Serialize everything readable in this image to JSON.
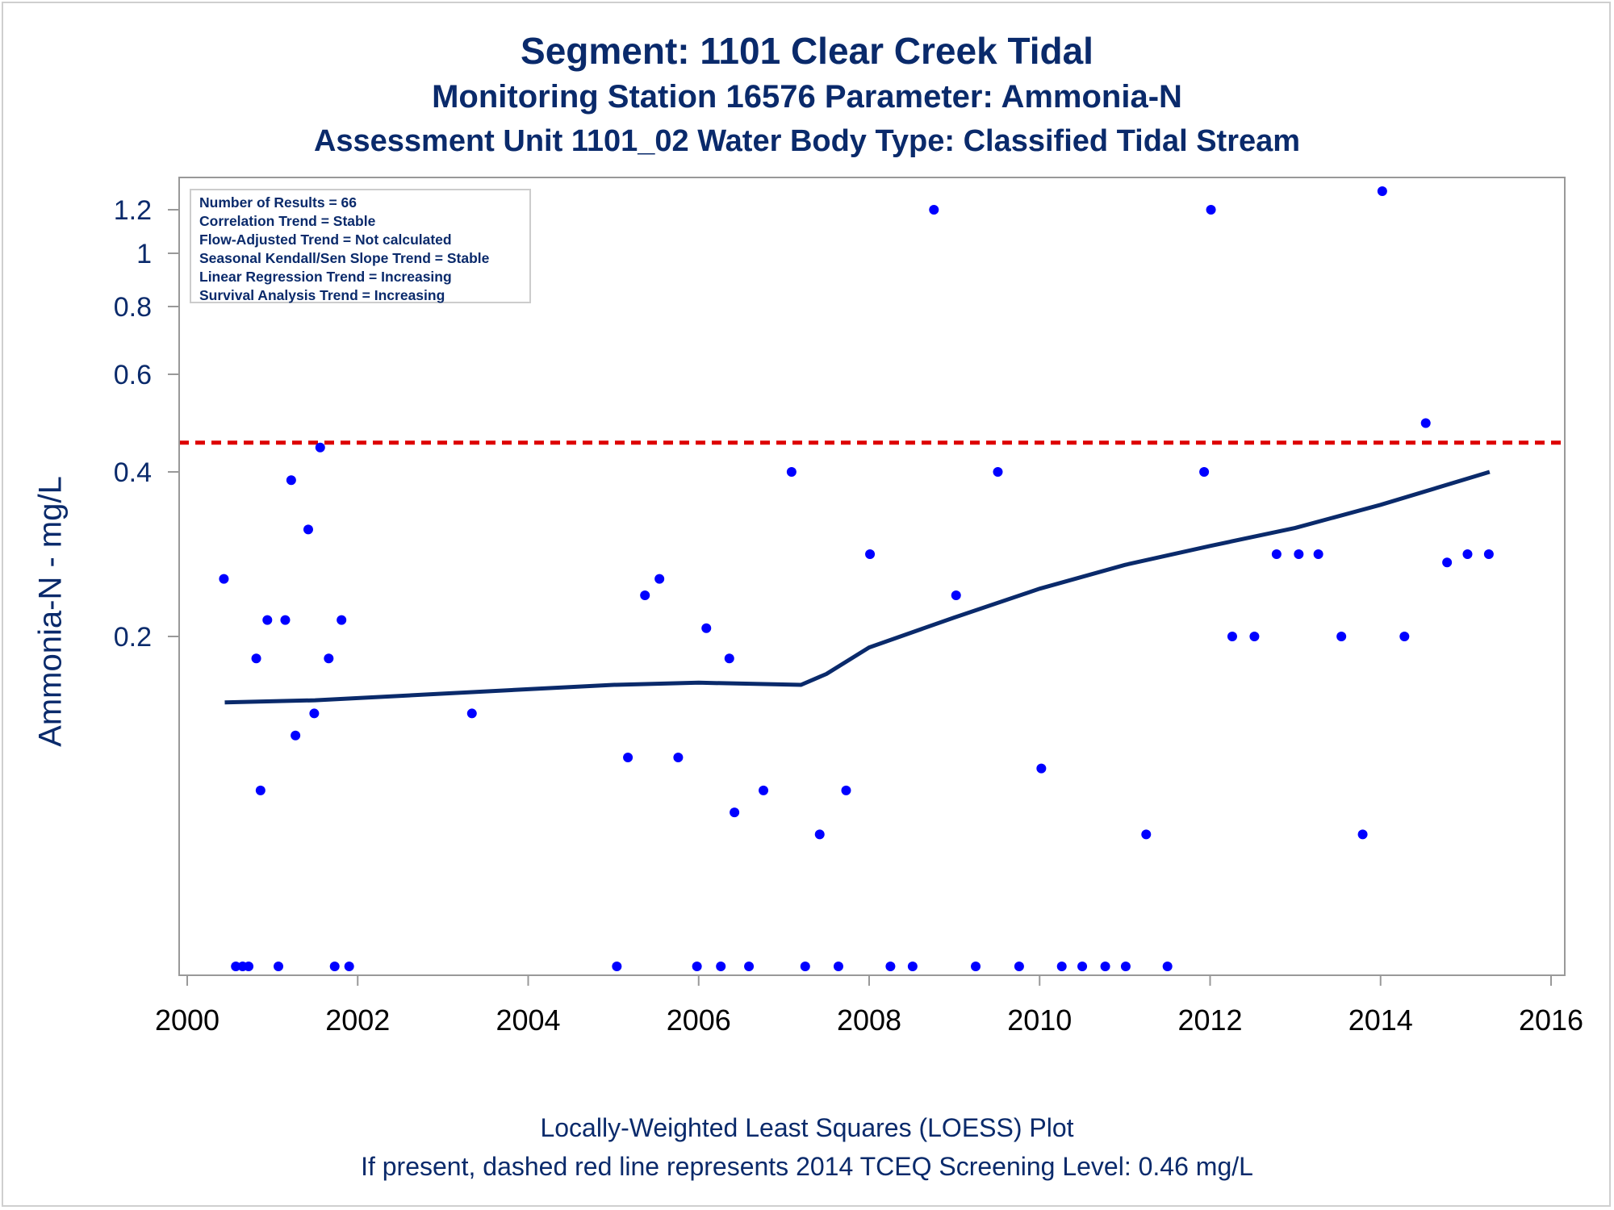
{
  "title_lines": [
    "Segment: 1101  Clear Creek Tidal",
    "Monitoring Station 16576 Parameter: Ammonia-N",
    "Assessment Unit 1101_02   Water Body Type: Classified Tidal Stream"
  ],
  "footer_lines": [
    "Locally-Weighted Least Squares (LOESS) Plot",
    "If present, dashed red line represents 2014 TCEQ Screening Level: 0.46 mg/L"
  ],
  "stats_lines": [
    "Number of Results = 66",
    "Correlation Trend = Stable",
    "Flow-Adjusted Trend = Not calculated",
    "Seasonal Kendall/Sen Slope Trend = Stable",
    "Linear Regression Trend = Increasing",
    "Survival Analysis Trend = Increasing"
  ],
  "colors": {
    "text": "#0a2a6b",
    "points": "#0000ff",
    "loess": "#0a2a6b",
    "screening": "#dd0000",
    "axis": "#999999"
  },
  "chart_data": {
    "type": "scatter",
    "ylabel": "Ammonia-N - mg/L",
    "xlabel": "",
    "xlim": [
      2000,
      2016
    ],
    "x_ticks": [
      2000,
      2002,
      2004,
      2006,
      2008,
      2010,
      2012,
      2014,
      2016
    ],
    "y_scale": "nonlinear (compressed at high values)",
    "y_ticks": [
      {
        "value": 0.2,
        "label": "0.2"
      },
      {
        "value": 0.4,
        "label": "0.4"
      },
      {
        "value": 0.6,
        "label": "0.6"
      },
      {
        "value": 0.8,
        "label": "0.8"
      },
      {
        "value": 1.0,
        "label": "1"
      },
      {
        "value": 1.2,
        "label": "1.2"
      }
    ],
    "screening_level": 0.46,
    "points": [
      {
        "x": 2000.43,
        "y": 0.27
      },
      {
        "x": 2000.57,
        "y": 0.05
      },
      {
        "x": 2000.65,
        "y": 0.05
      },
      {
        "x": 2000.72,
        "y": 0.05
      },
      {
        "x": 2000.81,
        "y": 0.19
      },
      {
        "x": 2000.86,
        "y": 0.13
      },
      {
        "x": 2000.94,
        "y": 0.22
      },
      {
        "x": 2001.07,
        "y": 0.05
      },
      {
        "x": 2001.15,
        "y": 0.22
      },
      {
        "x": 2001.22,
        "y": 0.39
      },
      {
        "x": 2001.27,
        "y": 0.155
      },
      {
        "x": 2001.42,
        "y": 0.33
      },
      {
        "x": 2001.49,
        "y": 0.165
      },
      {
        "x": 2001.56,
        "y": 0.45
      },
      {
        "x": 2001.66,
        "y": 0.19
      },
      {
        "x": 2001.73,
        "y": 0.05
      },
      {
        "x": 2001.81,
        "y": 0.22
      },
      {
        "x": 2001.9,
        "y": 0.05
      },
      {
        "x": 2003.34,
        "y": 0.165
      },
      {
        "x": 2005.04,
        "y": 0.05
      },
      {
        "x": 2005.17,
        "y": 0.145
      },
      {
        "x": 2005.37,
        "y": 0.25
      },
      {
        "x": 2005.54,
        "y": 0.27
      },
      {
        "x": 2005.76,
        "y": 0.145
      },
      {
        "x": 2005.98,
        "y": 0.05
      },
      {
        "x": 2006.09,
        "y": 0.21
      },
      {
        "x": 2006.26,
        "y": 0.05
      },
      {
        "x": 2006.36,
        "y": 0.19
      },
      {
        "x": 2006.42,
        "y": 0.12
      },
      {
        "x": 2006.59,
        "y": 0.05
      },
      {
        "x": 2006.76,
        "y": 0.13
      },
      {
        "x": 2007.09,
        "y": 0.4
      },
      {
        "x": 2007.25,
        "y": 0.05
      },
      {
        "x": 2007.42,
        "y": 0.11
      },
      {
        "x": 2007.64,
        "y": 0.05
      },
      {
        "x": 2007.73,
        "y": 0.13
      },
      {
        "x": 2008.01,
        "y": 0.3
      },
      {
        "x": 2008.25,
        "y": 0.05
      },
      {
        "x": 2008.51,
        "y": 0.05
      },
      {
        "x": 2008.76,
        "y": 1.2
      },
      {
        "x": 2009.25,
        "y": 0.05
      },
      {
        "x": 2009.02,
        "y": 0.25
      },
      {
        "x": 2009.51,
        "y": 0.4
      },
      {
        "x": 2009.76,
        "y": 0.05
      },
      {
        "x": 2010.02,
        "y": 0.14
      },
      {
        "x": 2010.26,
        "y": 0.05
      },
      {
        "x": 2010.5,
        "y": 0.05
      },
      {
        "x": 2010.77,
        "y": 0.05
      },
      {
        "x": 2011.01,
        "y": 0.05
      },
      {
        "x": 2011.25,
        "y": 0.11
      },
      {
        "x": 2011.5,
        "y": 0.05
      },
      {
        "x": 2011.93,
        "y": 0.4
      },
      {
        "x": 2012.01,
        "y": 1.2
      },
      {
        "x": 2012.26,
        "y": 0.2
      },
      {
        "x": 2012.52,
        "y": 0.2
      },
      {
        "x": 2012.78,
        "y": 0.3
      },
      {
        "x": 2013.04,
        "y": 0.3
      },
      {
        "x": 2013.27,
        "y": 0.3
      },
      {
        "x": 2013.54,
        "y": 0.2
      },
      {
        "x": 2013.79,
        "y": 0.11
      },
      {
        "x": 2014.02,
        "y": 1.3
      },
      {
        "x": 2014.28,
        "y": 0.2
      },
      {
        "x": 2014.53,
        "y": 0.5
      },
      {
        "x": 2014.78,
        "y": 0.29
      },
      {
        "x": 2015.02,
        "y": 0.3
      },
      {
        "x": 2015.27,
        "y": 0.3
      }
    ],
    "loess": [
      {
        "x": 2000.44,
        "y": 0.17
      },
      {
        "x": 2001.5,
        "y": 0.171
      },
      {
        "x": 2003.0,
        "y": 0.174
      },
      {
        "x": 2004.0,
        "y": 0.176
      },
      {
        "x": 2005.0,
        "y": 0.178
      },
      {
        "x": 2006.0,
        "y": 0.179
      },
      {
        "x": 2007.2,
        "y": 0.178
      },
      {
        "x": 2007.5,
        "y": 0.183
      },
      {
        "x": 2008.0,
        "y": 0.195
      },
      {
        "x": 2009.0,
        "y": 0.223
      },
      {
        "x": 2010.0,
        "y": 0.258
      },
      {
        "x": 2011.0,
        "y": 0.287
      },
      {
        "x": 2012.0,
        "y": 0.31
      },
      {
        "x": 2013.0,
        "y": 0.332
      },
      {
        "x": 2014.0,
        "y": 0.36
      },
      {
        "x": 2015.28,
        "y": 0.4
      }
    ]
  }
}
